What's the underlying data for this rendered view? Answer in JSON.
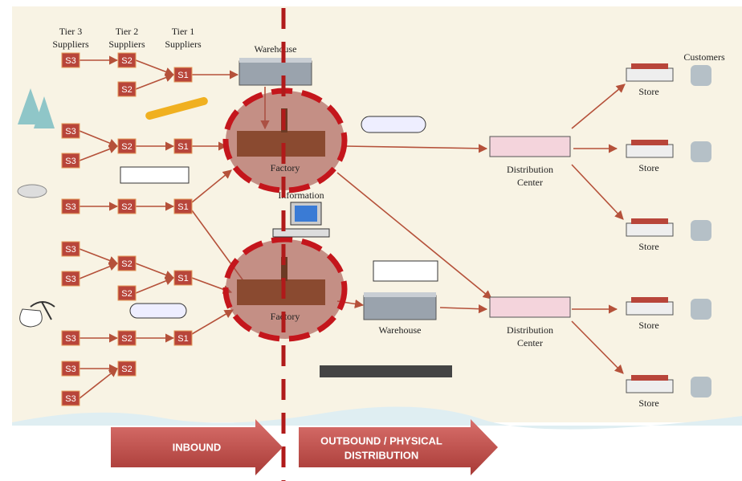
{
  "tiers": [
    {
      "tier": "Tier 3",
      "label": "Suppliers"
    },
    {
      "tier": "Tier 2",
      "label": "Suppliers"
    },
    {
      "tier": "Tier 1",
      "label": "Suppliers"
    }
  ],
  "suppliers": [
    "S3",
    "S2",
    "S2",
    "S1",
    "S3",
    "S3",
    "S2",
    "S1",
    "S3",
    "S2",
    "S1",
    "S3",
    "S3",
    "S2",
    "S2",
    "S1",
    "S3",
    "S2",
    "S1",
    "S3",
    "S2",
    "S3"
  ],
  "warehouses": [
    "Warehouse",
    "Warehouse"
  ],
  "factories": [
    "Factory",
    "Factory"
  ],
  "information": "Information",
  "distribution_centers": [
    [
      "Distribution",
      "Center"
    ],
    [
      "Distribution",
      "Center"
    ]
  ],
  "customers": "Customers",
  "stores": [
    "Store",
    "Store",
    "Store",
    "Store",
    "Store"
  ],
  "flows": {
    "inbound": "INBOUND",
    "outbound": [
      "OUTBOUND / PHYSICAL",
      "DISTRIBUTION"
    ]
  }
}
